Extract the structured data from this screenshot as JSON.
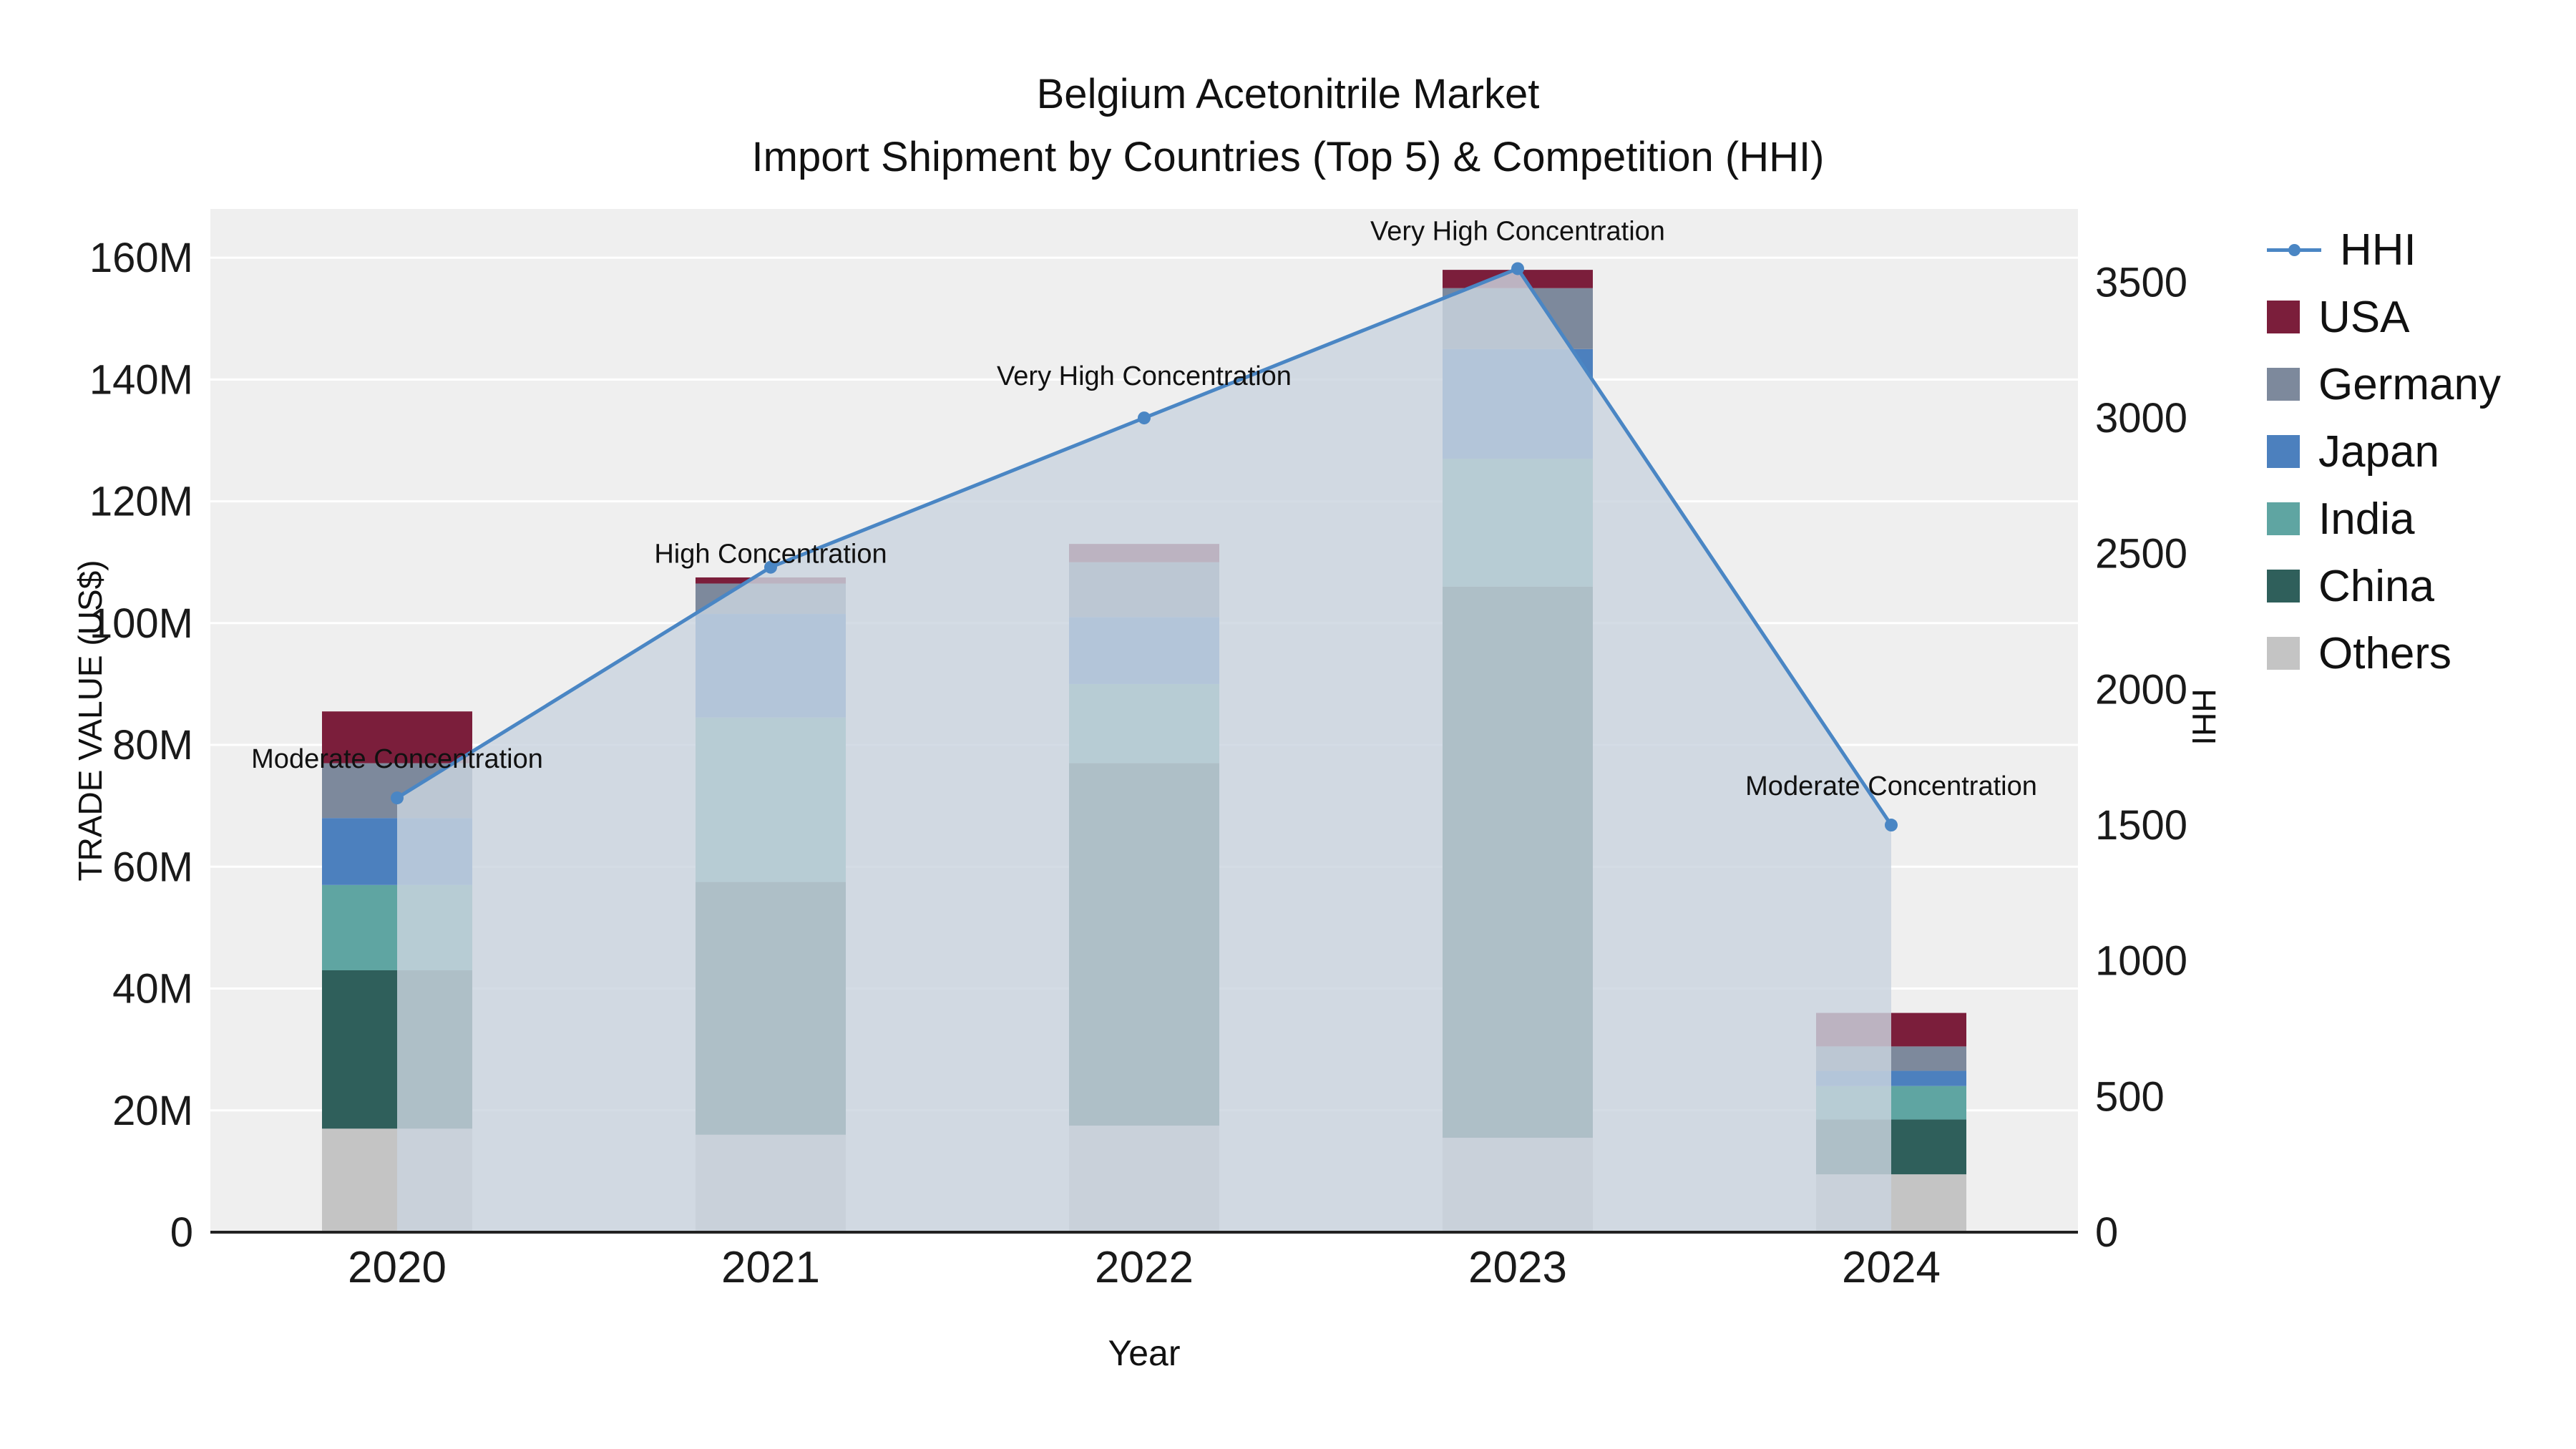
{
  "title": "Belgium Acetonitrile Market",
  "subtitle": "Import Shipment by Countries (Top 5) & Competition (HHI)",
  "colors": {
    "plot_bg": "#efefef",
    "grid": "#ffffff",
    "axis_line": "#222222",
    "hhi_line": "#4a86c4",
    "hhi_area": "rgba(203,212,223,0.82)"
  },
  "chart_data": {
    "type": "bar",
    "stacked": true,
    "categories": [
      "2020",
      "2021",
      "2022",
      "2023",
      "2024"
    ],
    "series": [
      {
        "name": "Others",
        "color": "#c4c4c4",
        "values": [
          17.0,
          16.0,
          17.5,
          15.5,
          9.5
        ]
      },
      {
        "name": "China",
        "color": "#2f5f5b",
        "values": [
          26.0,
          41.5,
          59.5,
          90.5,
          9.0
        ]
      },
      {
        "name": "India",
        "color": "#5fa5a2",
        "values": [
          14.0,
          27.0,
          13.0,
          21.0,
          5.5
        ]
      },
      {
        "name": "Japan",
        "color": "#4c80be",
        "values": [
          11.0,
          17.0,
          11.0,
          18.0,
          2.5
        ]
      },
      {
        "name": "Germany",
        "color": "#7d899c",
        "values": [
          9.0,
          5.0,
          9.0,
          10.0,
          4.0
        ]
      },
      {
        "name": "USA",
        "color": "#7b1e3b",
        "values": [
          8.5,
          1.0,
          3.0,
          3.0,
          5.5
        ]
      }
    ],
    "line_series": {
      "name": "HHI",
      "axis": "right",
      "color": "#4a86c4",
      "values": [
        1600,
        2450,
        3000,
        3550,
        1500
      ]
    },
    "y_left": {
      "label": "TRADE VALUE (US$)",
      "max": 168,
      "tick_step": 20,
      "tick_suffix": "M"
    },
    "y_right": {
      "label": "HHI",
      "max": 3770,
      "tick_step": 500
    },
    "x_label": "Year",
    "annotations": [
      {
        "category": "2020",
        "text": "Moderate Concentration",
        "dy": -42
      },
      {
        "category": "2021",
        "text": "High Concentration",
        "dy": -6
      },
      {
        "category": "2022",
        "text": "Very High Concentration",
        "dy": -46
      },
      {
        "category": "2023",
        "text": "Very High Concentration",
        "dy": -40
      },
      {
        "category": "2024",
        "text": "Moderate Concentration",
        "dy": -42
      }
    ],
    "legend": [
      "HHI",
      "USA",
      "Germany",
      "Japan",
      "India",
      "China",
      "Others"
    ]
  }
}
